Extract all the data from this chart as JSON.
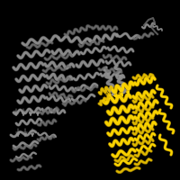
{
  "background_color": "#000000",
  "figsize": [
    2.0,
    2.0
  ],
  "dpi": 100,
  "gray_color": "#909090",
  "yellow_color": "#FFD700",
  "gray_dark": "#505050",
  "yellow_dark": "#C8A000",
  "gray_mid": "#707070",
  "yellow_mid": "#E8C000",
  "image_size": 200
}
